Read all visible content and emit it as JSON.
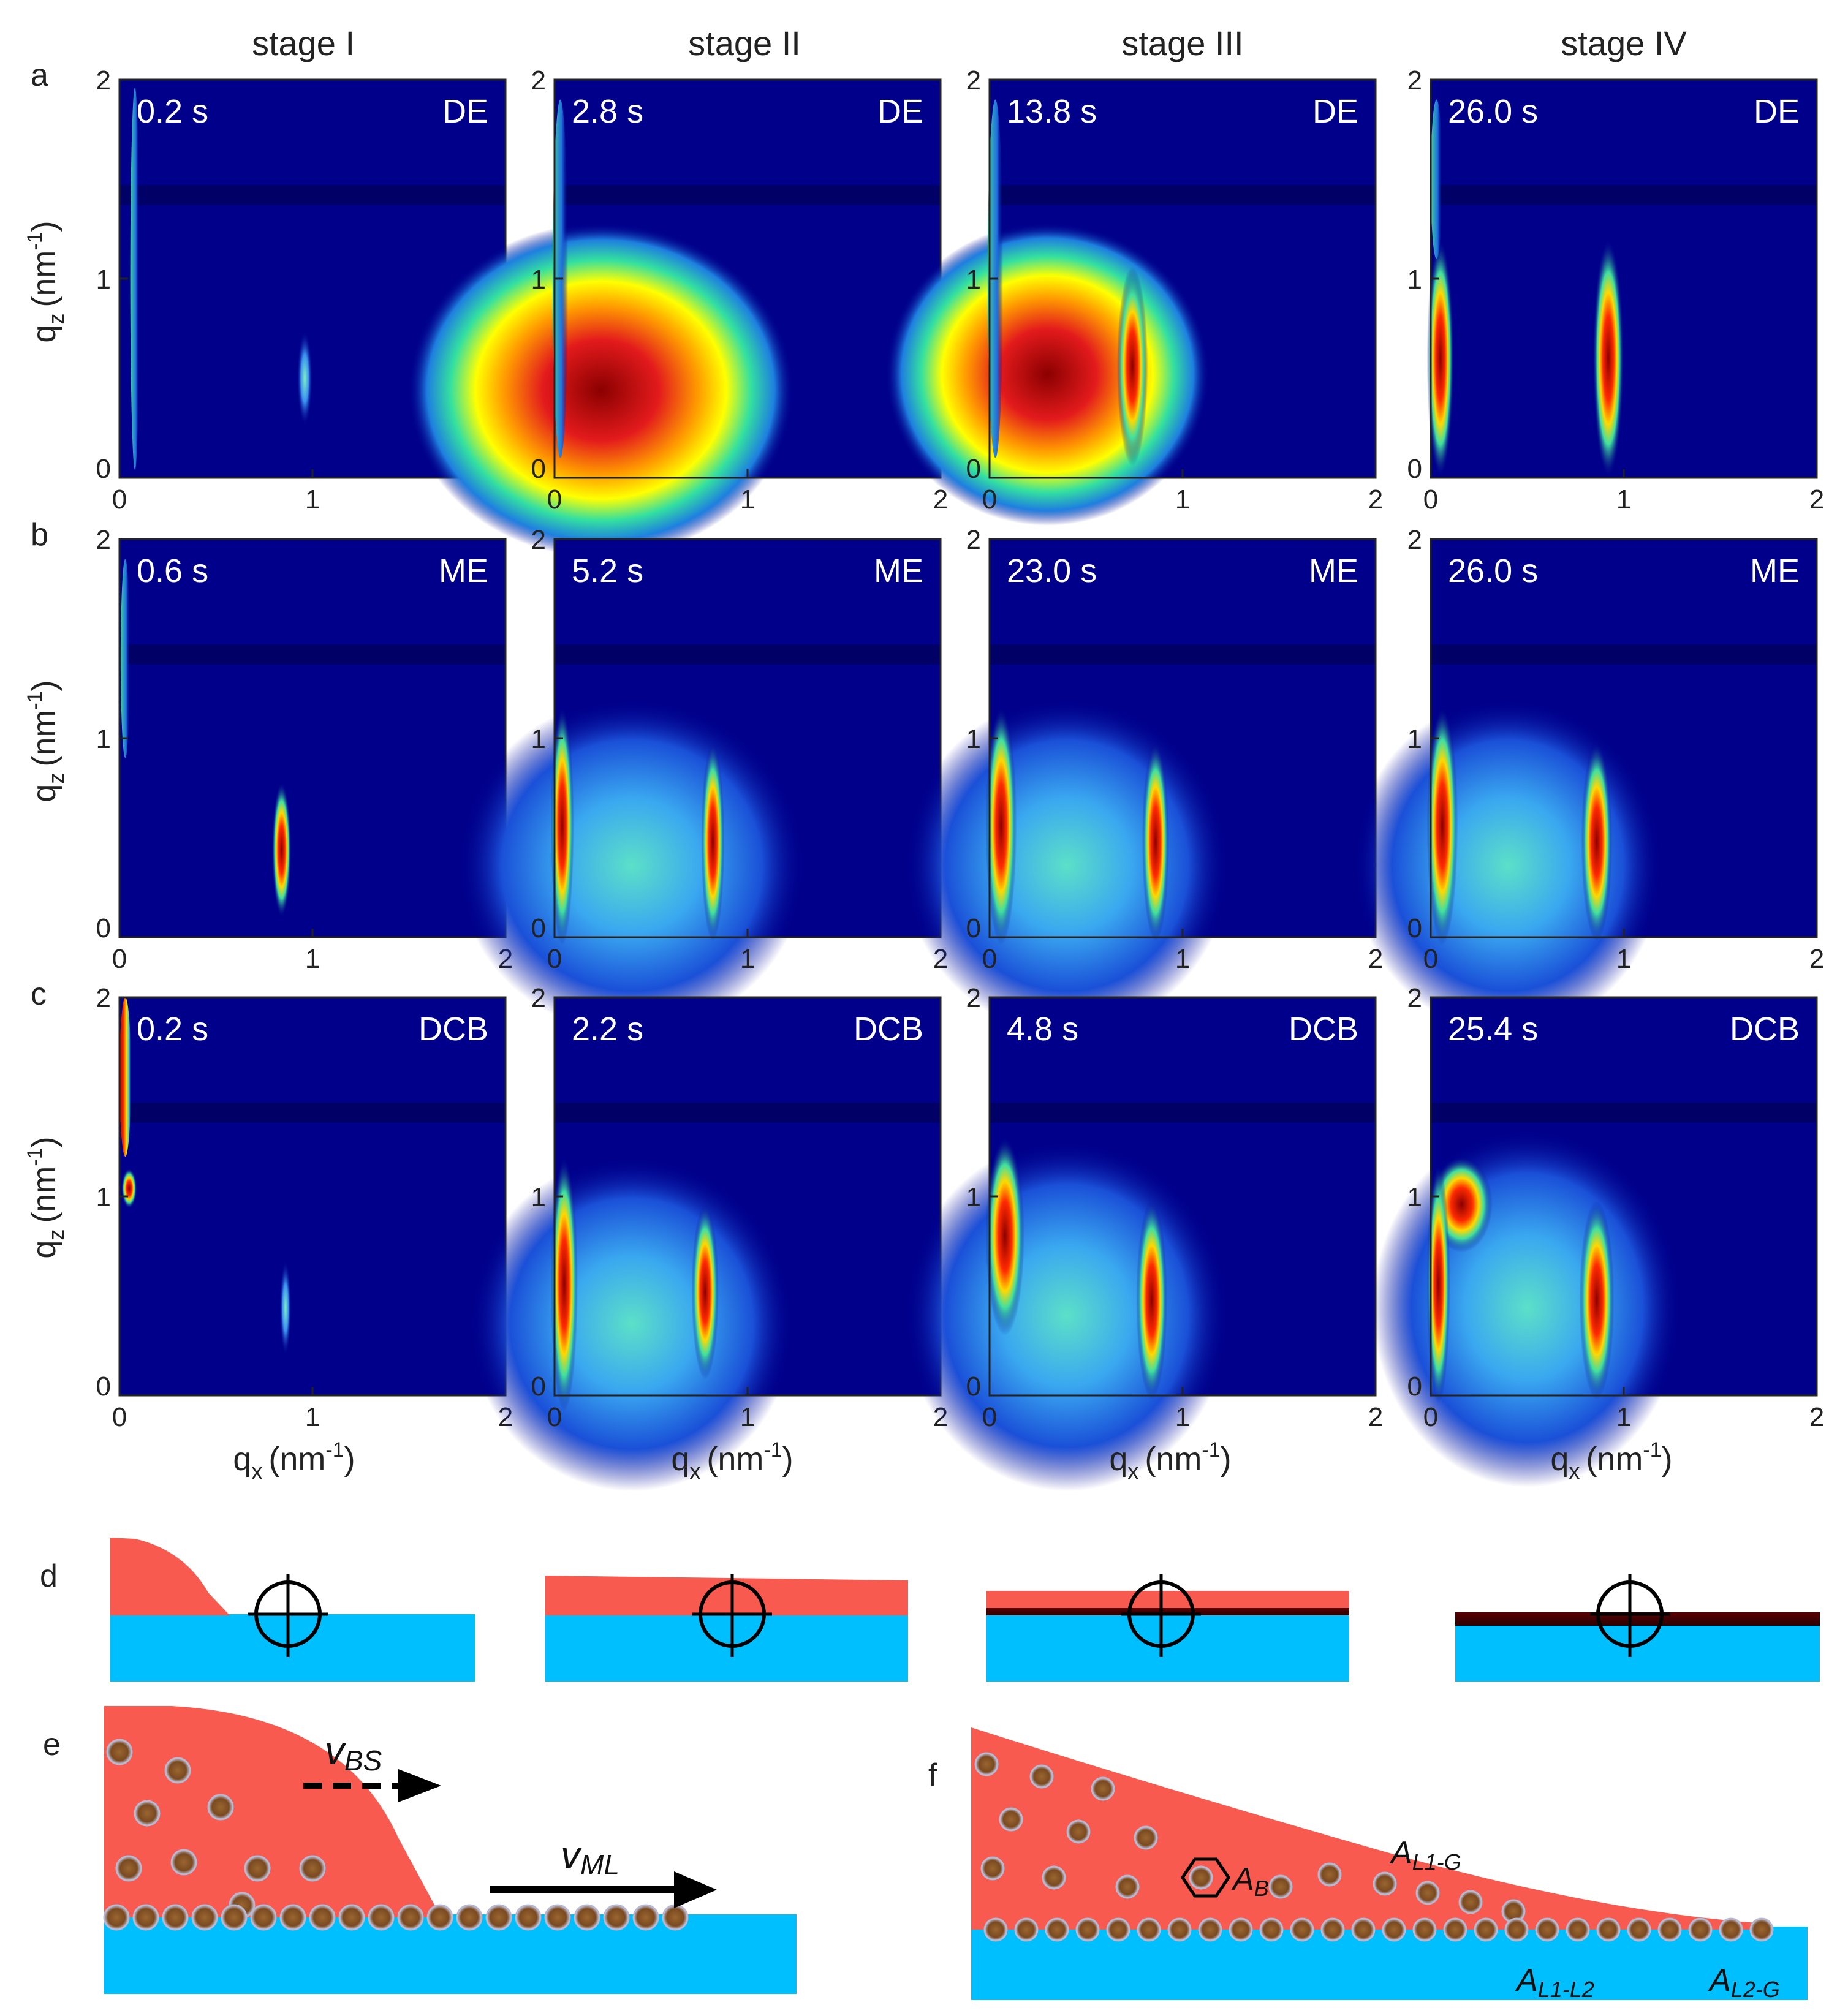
{
  "stages": [
    "stage I",
    "stage II",
    "stage III",
    "stage IV"
  ],
  "row_letters": [
    "a",
    "b",
    "c"
  ],
  "lower_letters": {
    "d": "d",
    "e": "e",
    "f": "f"
  },
  "axis": {
    "ylabel_main": "q",
    "ylabel_sub": "z",
    "ylabel_unit": "(nm",
    "ylabel_exp": "-1",
    "ylabel_close": ")",
    "xlabel_main": "q",
    "xlabel_sub": "x",
    "xlabel_unit": "(nm",
    "xlabel_exp": "-1",
    "xlabel_close": ")",
    "ticks": [
      "0",
      "1",
      "2"
    ]
  },
  "panels": [
    [
      {
        "time": "0.2 s",
        "solvent": "DE"
      },
      {
        "time": "2.8 s",
        "solvent": "DE"
      },
      {
        "time": "13.8 s",
        "solvent": "DE"
      },
      {
        "time": "26.0 s",
        "solvent": "DE"
      }
    ],
    [
      {
        "time": "0.6 s",
        "solvent": "ME"
      },
      {
        "time": "5.2 s",
        "solvent": "ME"
      },
      {
        "time": "23.0 s",
        "solvent": "ME"
      },
      {
        "time": "26.0 s",
        "solvent": "ME"
      }
    ],
    [
      {
        "time": "0.2 s",
        "solvent": "DCB"
      },
      {
        "time": "2.2 s",
        "solvent": "DCB"
      },
      {
        "time": "4.8 s",
        "solvent": "DCB"
      },
      {
        "time": "25.4 s",
        "solvent": "DCB"
      }
    ]
  ],
  "schematic_e": {
    "v_bs_main": "v",
    "v_bs_sub": "BS",
    "v_ml_main": "v",
    "v_ml_sub": "ML"
  },
  "schematic_f": {
    "a_b_main": "A",
    "a_b_sub": "B",
    "a_l1g_main": "A",
    "a_l1g_sub": "L1-G",
    "a_l1l2_main": "A",
    "a_l1l2_sub": "L1-L2",
    "a_l2g_main": "A",
    "a_l2g_sub": "L2-G"
  },
  "colors": {
    "background": "#00008b",
    "liquid": "#f95a4f",
    "substrate": "#00bfff",
    "particle": "#8b5a2b",
    "text_overlay": "#ffffff"
  }
}
